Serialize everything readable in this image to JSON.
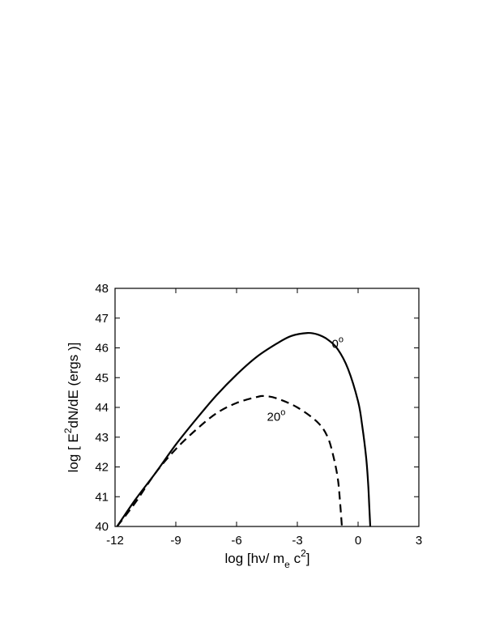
{
  "chart_data": {
    "type": "line",
    "xlim": [
      -12,
      3
    ],
    "ylim": [
      40,
      48
    ],
    "x_ticks": [
      -12,
      -9,
      -6,
      -3,
      0,
      3
    ],
    "y_ticks": [
      40,
      41,
      42,
      43,
      44,
      45,
      46,
      47,
      48
    ],
    "x_tick_labels": [
      "-12",
      "-9",
      "-6",
      "-3",
      "0",
      "3"
    ],
    "y_tick_labels": [
      "40",
      "41",
      "42",
      "43",
      "44",
      "45",
      "46",
      "47",
      "48"
    ],
    "xlabel": {
      "prefix": "log  [h",
      "nu": "ν",
      "mid": "/ m",
      "sub": "e",
      "c": " c",
      "sup": "2",
      "suffix": "]"
    },
    "ylabel": {
      "prefix": "log [ E",
      "sup": "2",
      "suffix": "dN/dE    (ergs )]"
    },
    "grid": false,
    "series": [
      {
        "name": "0°",
        "name_value": "0",
        "name_degree": "o",
        "style": "solid",
        "color": "#000000",
        "label_at": [
          -1.3,
          46.0
        ],
        "x": [
          -11.9,
          -11.0,
          -10.0,
          -9.0,
          -8.0,
          -7.0,
          -6.0,
          -5.0,
          -4.0,
          -3.3,
          -2.5,
          -2.0,
          -1.5,
          -1.0,
          -0.5,
          0.0,
          0.2,
          0.4,
          0.5,
          0.55,
          0.6
        ],
        "y": [
          40.0,
          40.9,
          41.8,
          42.75,
          43.6,
          44.4,
          45.1,
          45.7,
          46.15,
          46.4,
          46.5,
          46.45,
          46.28,
          45.95,
          45.3,
          44.2,
          43.4,
          42.3,
          41.4,
          40.7,
          40.0
        ]
      },
      {
        "name": "20°",
        "name_value": "20",
        "name_degree": "o",
        "style": "dashed",
        "color": "#000000",
        "label_at": [
          -4.5,
          43.55
        ],
        "x": [
          -11.9,
          -11.0,
          -10.0,
          -9.0,
          -8.0,
          -7.0,
          -6.0,
          -5.0,
          -4.6,
          -4.0,
          -3.0,
          -2.0,
          -1.5,
          -1.2,
          -1.0,
          -0.9,
          -0.8
        ],
        "y": [
          40.0,
          40.8,
          41.8,
          42.6,
          43.25,
          43.8,
          44.15,
          44.35,
          44.38,
          44.3,
          44.0,
          43.5,
          43.0,
          42.3,
          41.6,
          40.9,
          40.0
        ]
      }
    ]
  }
}
